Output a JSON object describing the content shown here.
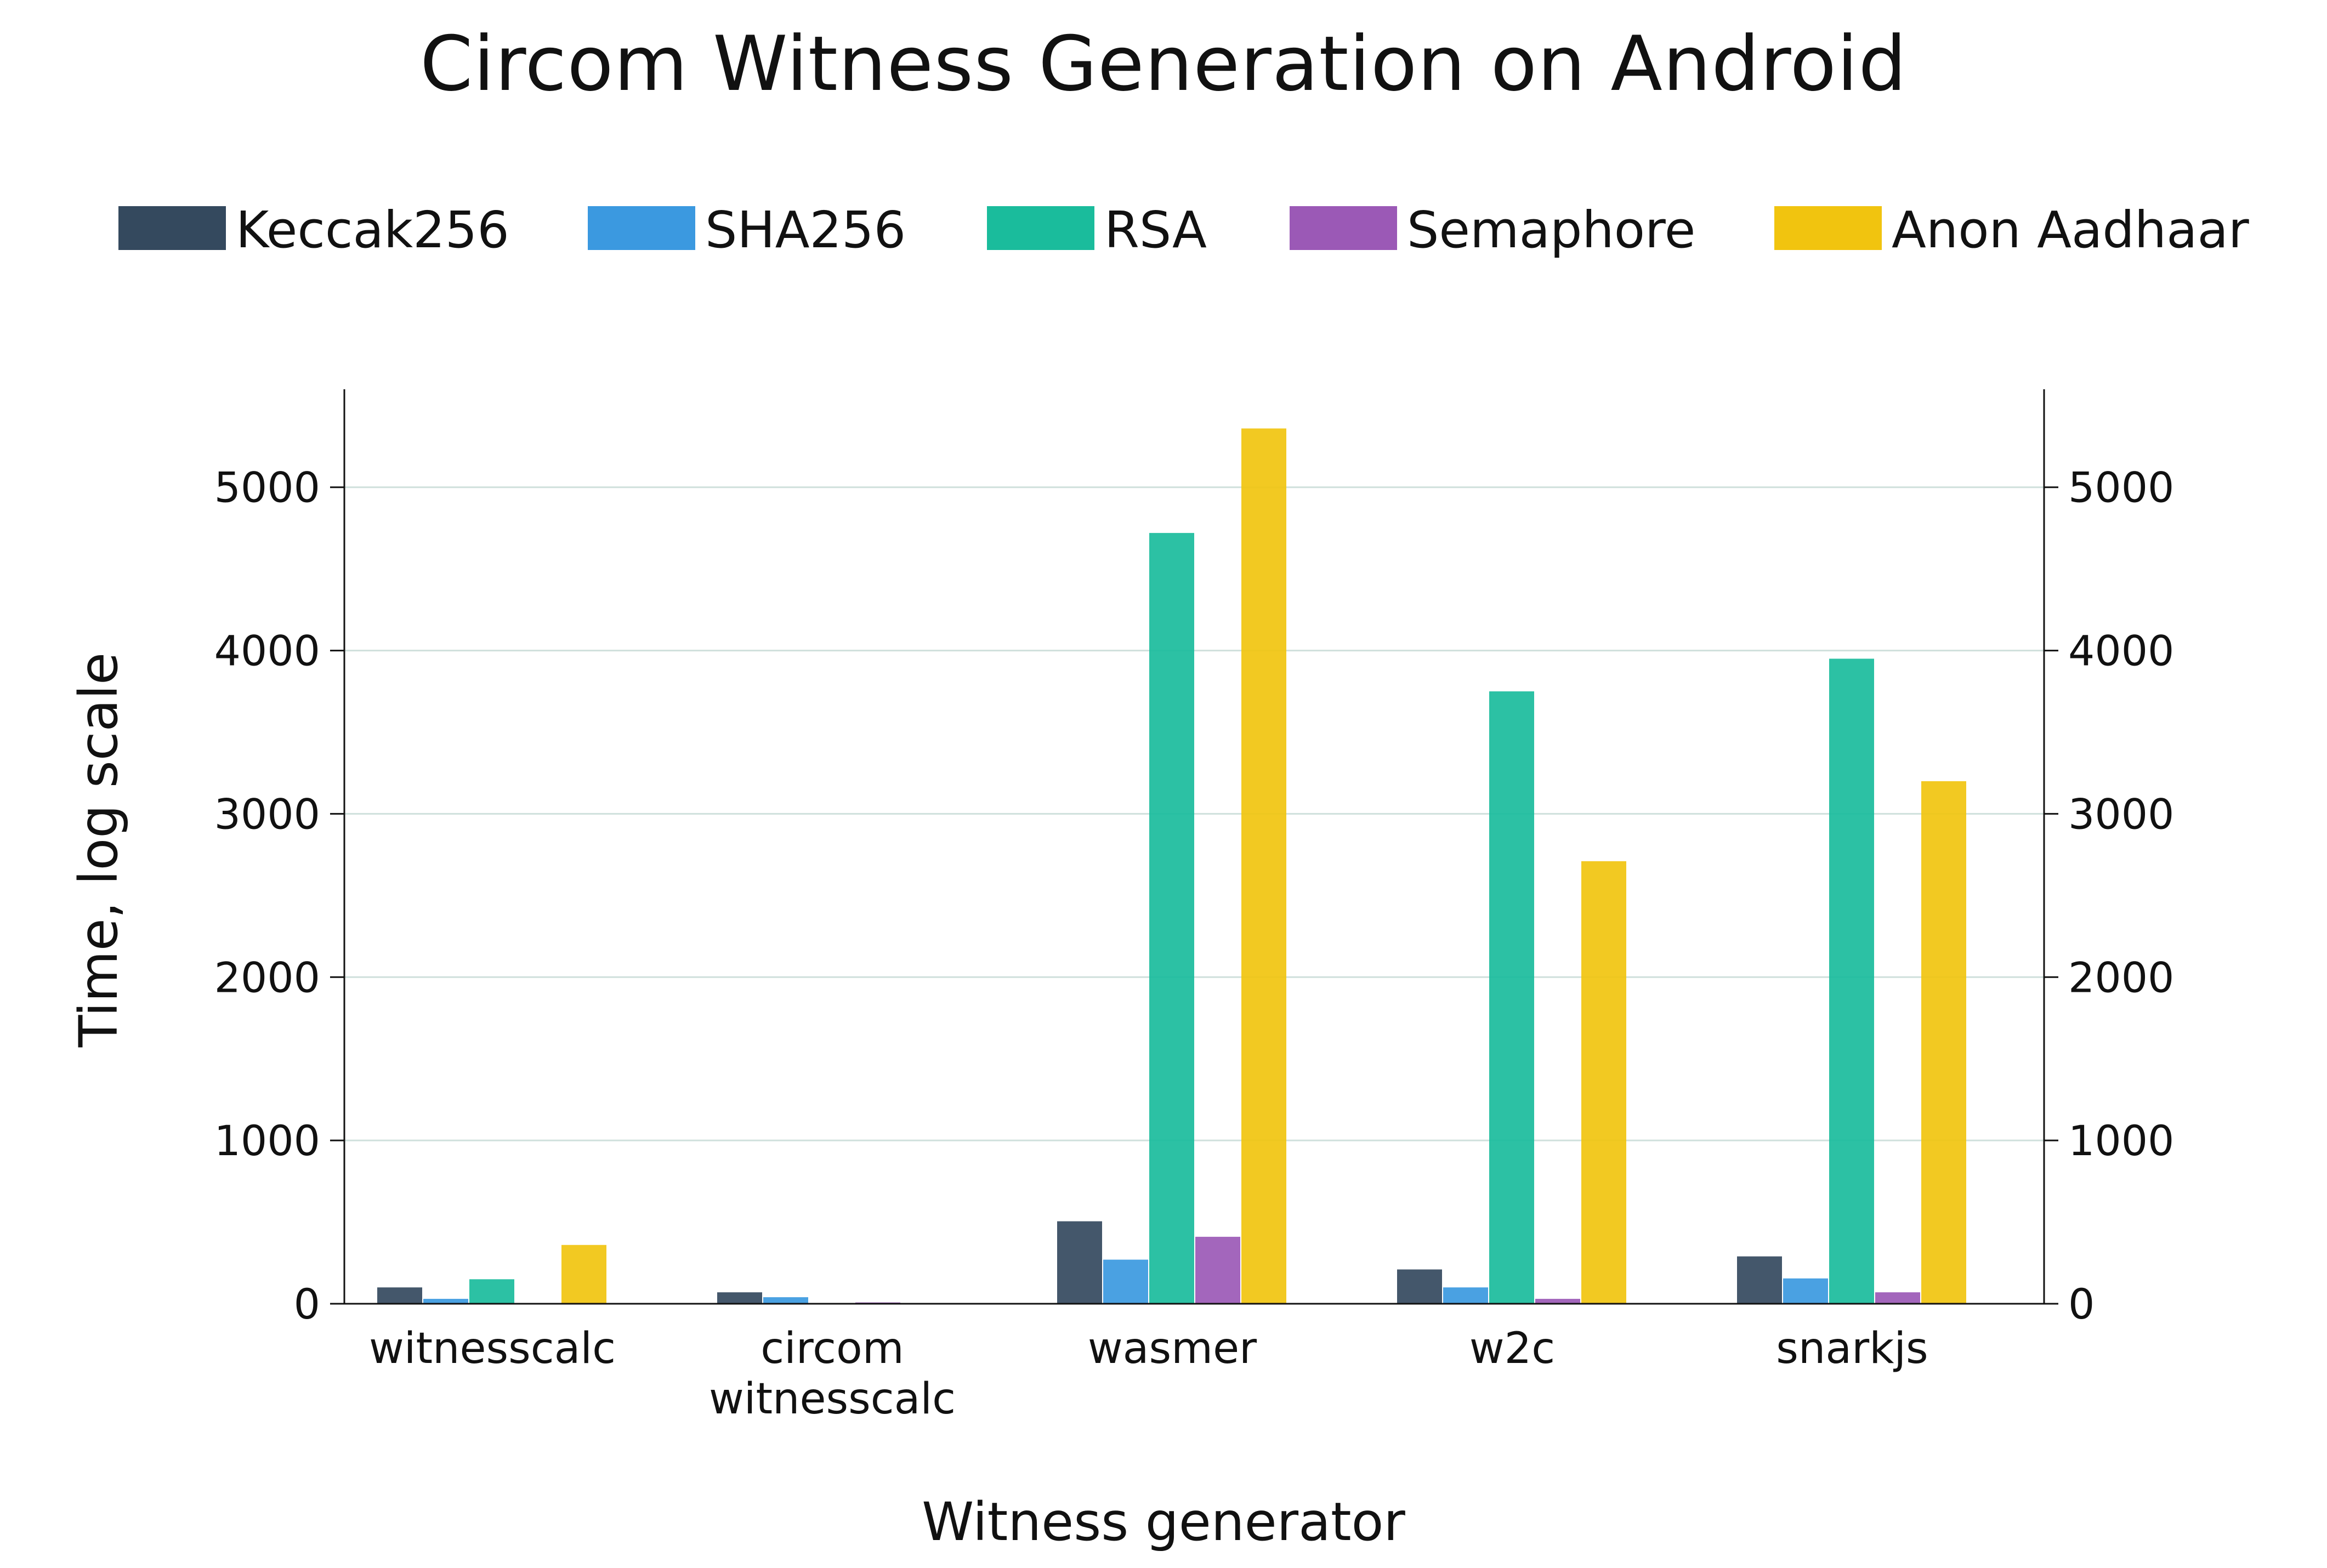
{
  "chart_data": {
    "type": "bar",
    "title": "Circom Witness Generation on Android",
    "xlabel": "Witness generator",
    "ylabel": "Time, log scale",
    "ylim": [
      0,
      5600
    ],
    "yticks": [
      0,
      1000,
      2000,
      3000,
      4000,
      5000
    ],
    "grid": true,
    "legend_position": "top",
    "categories": [
      "witnesscalc",
      "circom\nwitnesscalc",
      "wasmer",
      "w2c",
      "snarkjs"
    ],
    "series": [
      {
        "name": "Keccak256",
        "color": "#34495e",
        "values": [
          100,
          70,
          505,
          210,
          290
        ]
      },
      {
        "name": "SHA256",
        "color": "#3b99e0",
        "values": [
          30,
          40,
          270,
          100,
          155
        ]
      },
      {
        "name": "RSA",
        "color": "#1abc9c",
        "values": [
          150,
          0,
          4720,
          3750,
          3950
        ]
      },
      {
        "name": "Semaphore",
        "color": "#9b59b6",
        "values": [
          5,
          8,
          410,
          30,
          70
        ]
      },
      {
        "name": "Anon Aadhaar",
        "color": "#f1c40f",
        "values": [
          360,
          0,
          5360,
          2710,
          3200
        ]
      }
    ]
  }
}
